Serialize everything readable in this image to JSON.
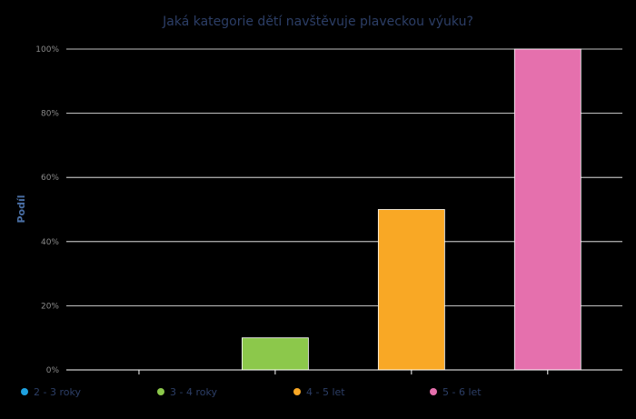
{
  "chart_data": {
    "type": "bar",
    "title": "Jaká kategorie dětí navštěvuje plaveckou výuku?",
    "ylabel": "Podíl",
    "xlabel": "",
    "categories": [
      "2 - 3 roky",
      "3 - 4 roky",
      "4 - 5 let",
      "5 - 6 let"
    ],
    "values": [
      0,
      10,
      50,
      100
    ],
    "colors": [
      "#1ea1e0",
      "#8cc84b",
      "#f9a825",
      "#e570ad"
    ],
    "ylim": [
      0,
      100
    ],
    "yticks": [
      "0%",
      "20%",
      "40%",
      "60%",
      "80%",
      "100%"
    ],
    "ytick_values": [
      0,
      20,
      40,
      60,
      80,
      100
    ],
    "grid": true,
    "legend_position": "bottom",
    "background": "#000000"
  }
}
